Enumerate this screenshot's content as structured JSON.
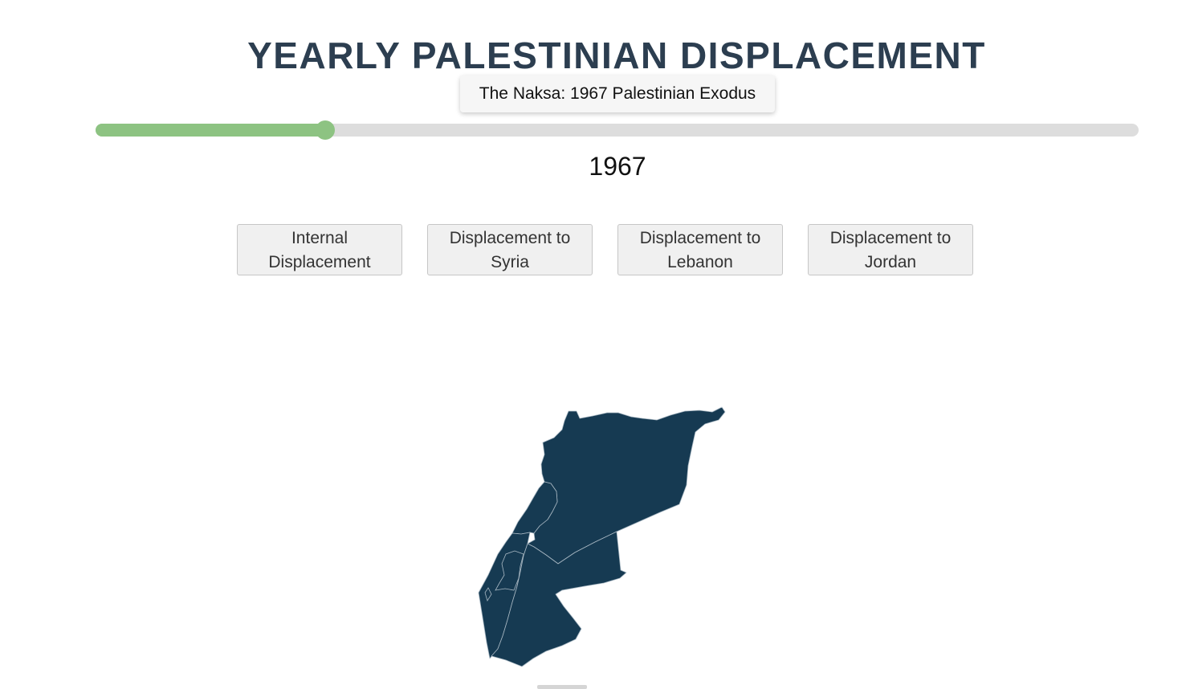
{
  "header": {
    "title": "YEARLY PALESTINIAN DISPLACEMENT"
  },
  "timeline": {
    "event_label": "The Naksa: 1967 Palestinian Exodus",
    "selected_year": "1967",
    "slider_progress": 0.22
  },
  "buttons": [
    {
      "label": "Internal Displacement"
    },
    {
      "label": "Displacement to Syria"
    },
    {
      "label": "Displacement to Lebanon"
    },
    {
      "label": "Displacement to Jordan"
    }
  ],
  "map": {
    "regions": [
      "syria",
      "lebanon",
      "palestine",
      "jordan"
    ],
    "fill_color": "#163a52",
    "border_color": "#a9b8c3"
  },
  "colors": {
    "title": "#2c3e50",
    "slider_fill": "#8dc382",
    "slider_track": "#dddddd",
    "button_bg": "#f0f0f0"
  }
}
